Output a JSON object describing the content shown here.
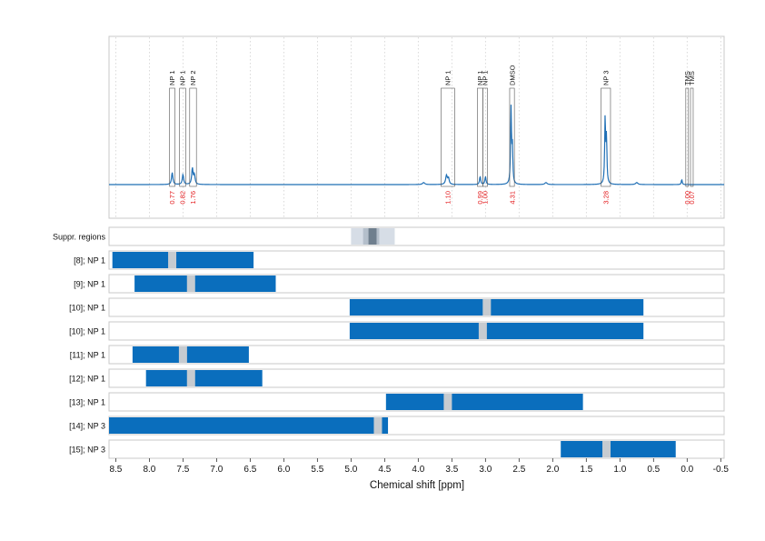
{
  "chart_data": {
    "type": "spectrum",
    "xlabel": "Chemical shift [ppm]",
    "xlim": [
      8.6,
      -0.55
    ],
    "ticks": [
      "8.5",
      "8.0",
      "7.5",
      "7.0",
      "6.5",
      "6.0",
      "5.5",
      "5.0",
      "4.5",
      "4.0",
      "3.5",
      "3.0",
      "2.5",
      "2.0",
      "1.5",
      "1.0",
      "0.5",
      "0.0",
      "-0.5"
    ],
    "colors": {
      "line": "#1f6fb5",
      "bar": "#0a6ebd",
      "suppr_light": "#d6dde6",
      "suppr_dark": "#6f7f8e",
      "marker": "#c6cbd0",
      "integral": "#e31a1c",
      "frame": "#c8c8c8"
    },
    "peaks": [
      {
        "ppm": 7.66,
        "height": 0.12,
        "width": 0.012
      },
      {
        "ppm": 7.5,
        "height": 0.1,
        "width": 0.012
      },
      {
        "ppm": 7.36,
        "height": 0.16,
        "width": 0.012
      },
      {
        "ppm": 7.33,
        "height": 0.09,
        "width": 0.012
      },
      {
        "ppm": 3.58,
        "height": 0.09,
        "width": 0.015
      },
      {
        "ppm": 3.55,
        "height": 0.06,
        "width": 0.012
      },
      {
        "ppm": 3.08,
        "height": 0.08,
        "width": 0.01
      },
      {
        "ppm": 3.0,
        "height": 0.08,
        "width": 0.01
      },
      {
        "ppm": 2.62,
        "height": 0.75,
        "width": 0.008
      },
      {
        "ppm": 2.6,
        "height": 0.35,
        "width": 0.008
      },
      {
        "ppm": 1.22,
        "height": 0.65,
        "width": 0.008
      },
      {
        "ppm": 1.2,
        "height": 0.45,
        "width": 0.008
      },
      {
        "ppm": 0.08,
        "height": 0.05,
        "width": 0.008
      },
      {
        "ppm": 3.92,
        "height": 0.02,
        "width": 0.02
      },
      {
        "ppm": 2.1,
        "height": 0.02,
        "width": 0.02
      },
      {
        "ppm": 0.75,
        "height": 0.02,
        "width": 0.02
      }
    ],
    "annotations": [
      {
        "label": "NP 1",
        "from": 7.7,
        "to": 7.62,
        "integral": "0.77"
      },
      {
        "label": "NP 1",
        "from": 7.55,
        "to": 7.46,
        "integral": "0.82"
      },
      {
        "label": "NP 2",
        "from": 7.4,
        "to": 7.3,
        "integral": "1.76"
      },
      {
        "label": "NP 1",
        "from": 3.66,
        "to": 3.46,
        "integral": "1.10"
      },
      {
        "label": "NP 1",
        "from": 3.12,
        "to": 3.04,
        "integral": "0.99"
      },
      {
        "label": "NP 1",
        "from": 3.04,
        "to": 2.97,
        "integral": "1.00"
      },
      {
        "label": "DMSO",
        "from": 2.64,
        "to": 2.57,
        "integral": "4.31"
      },
      {
        "label": "NP 3",
        "from": 1.28,
        "to": 1.14,
        "integral": "3.28"
      },
      {
        "label": "TMS",
        "from": 0.02,
        "to": -0.02,
        "integral": "0.00"
      },
      {
        "label": "TMS",
        "from": -0.05,
        "to": -0.09,
        "integral": "0.07"
      }
    ],
    "suppression": {
      "label": "Suppr. regions",
      "outer": [
        5.0,
        4.35
      ],
      "inner": [
        4.82,
        4.58
      ],
      "core": [
        4.74,
        4.62
      ]
    },
    "rows": [
      {
        "label": "[8]; NP 1",
        "from": 8.55,
        "to": 6.45,
        "marker": 7.66
      },
      {
        "label": "[9]; NP 1",
        "from": 8.22,
        "to": 6.12,
        "marker": 7.38
      },
      {
        "label": "[10]; NP 1",
        "from": 5.02,
        "to": 0.65,
        "marker": 2.98
      },
      {
        "label": "[10]; NP 1",
        "from": 5.02,
        "to": 0.65,
        "marker": 3.04
      },
      {
        "label": "[11]; NP 1",
        "from": 8.25,
        "to": 6.52,
        "marker": 7.5
      },
      {
        "label": "[12]; NP 1",
        "from": 8.05,
        "to": 6.32,
        "marker": 7.38
      },
      {
        "label": "[13]; NP 1",
        "from": 4.48,
        "to": 1.55,
        "marker": 3.56
      },
      {
        "label": "[14]; NP 3",
        "from": 8.62,
        "to": 4.45,
        "marker": 4.6
      },
      {
        "label": "[15]; NP 3",
        "from": 1.88,
        "to": 0.17,
        "marker": 1.2
      }
    ]
  }
}
